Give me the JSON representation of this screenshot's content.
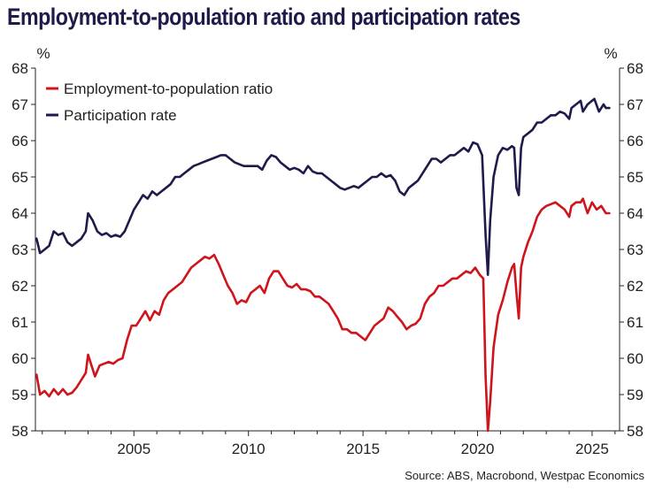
{
  "title": "Employment-to-population ratio and participation rates",
  "source": "Source: ABS, Macrobond, Westpac Economics",
  "colors": {
    "title": "#1e1b4b",
    "employment": "#d0141c",
    "participation": "#1e1b4b",
    "axis": "#222222"
  },
  "chart_data": {
    "type": "line",
    "title": "Employment-to-population ratio and participation rates",
    "xlabel": "",
    "ylabel_left": "%",
    "ylabel_right": "%",
    "xlim": [
      2000.7,
      2026.2
    ],
    "ylim": [
      58,
      68
    ],
    "yticks": [
      58,
      59,
      60,
      61,
      62,
      63,
      64,
      65,
      66,
      67,
      68
    ],
    "xticks": [
      2005,
      2010,
      2015,
      2020,
      2025
    ],
    "legend_position": "top-left",
    "grid": false,
    "series": [
      {
        "name": "Employment-to-population ratio",
        "color": "#d0141c",
        "points": [
          [
            2000.75,
            59.55
          ],
          [
            2000.9,
            59.0
          ],
          [
            2001.1,
            59.1
          ],
          [
            2001.3,
            58.95
          ],
          [
            2001.5,
            59.15
          ],
          [
            2001.7,
            59.0
          ],
          [
            2001.9,
            59.15
          ],
          [
            2002.1,
            59.0
          ],
          [
            2002.3,
            59.05
          ],
          [
            2002.5,
            59.2
          ],
          [
            2002.7,
            59.4
          ],
          [
            2002.9,
            59.6
          ],
          [
            2003.0,
            60.1
          ],
          [
            2003.15,
            59.8
          ],
          [
            2003.3,
            59.5
          ],
          [
            2003.5,
            59.8
          ],
          [
            2003.7,
            59.85
          ],
          [
            2003.9,
            59.9
          ],
          [
            2004.1,
            59.85
          ],
          [
            2004.3,
            59.95
          ],
          [
            2004.5,
            60.0
          ],
          [
            2004.7,
            60.5
          ],
          [
            2004.9,
            60.9
          ],
          [
            2005.1,
            60.9
          ],
          [
            2005.3,
            61.1
          ],
          [
            2005.5,
            61.3
          ],
          [
            2005.7,
            61.05
          ],
          [
            2005.9,
            61.3
          ],
          [
            2006.1,
            61.2
          ],
          [
            2006.3,
            61.6
          ],
          [
            2006.5,
            61.8
          ],
          [
            2006.7,
            61.9
          ],
          [
            2006.9,
            62.0
          ],
          [
            2007.1,
            62.1
          ],
          [
            2007.3,
            62.3
          ],
          [
            2007.5,
            62.5
          ],
          [
            2007.7,
            62.6
          ],
          [
            2007.9,
            62.7
          ],
          [
            2008.1,
            62.8
          ],
          [
            2008.3,
            62.75
          ],
          [
            2008.5,
            62.85
          ],
          [
            2008.7,
            62.6
          ],
          [
            2008.9,
            62.3
          ],
          [
            2009.1,
            62.0
          ],
          [
            2009.3,
            61.8
          ],
          [
            2009.5,
            61.5
          ],
          [
            2009.7,
            61.6
          ],
          [
            2009.9,
            61.55
          ],
          [
            2010.1,
            61.8
          ],
          [
            2010.3,
            61.9
          ],
          [
            2010.5,
            62.0
          ],
          [
            2010.7,
            61.8
          ],
          [
            2010.9,
            62.2
          ],
          [
            2011.1,
            62.4
          ],
          [
            2011.3,
            62.4
          ],
          [
            2011.5,
            62.2
          ],
          [
            2011.7,
            62.0
          ],
          [
            2011.9,
            61.95
          ],
          [
            2012.1,
            62.05
          ],
          [
            2012.3,
            61.9
          ],
          [
            2012.5,
            61.9
          ],
          [
            2012.7,
            61.85
          ],
          [
            2012.9,
            61.7
          ],
          [
            2013.1,
            61.7
          ],
          [
            2013.3,
            61.6
          ],
          [
            2013.5,
            61.5
          ],
          [
            2013.7,
            61.3
          ],
          [
            2013.9,
            61.1
          ],
          [
            2014.1,
            60.8
          ],
          [
            2014.3,
            60.8
          ],
          [
            2014.5,
            60.7
          ],
          [
            2014.7,
            60.7
          ],
          [
            2014.9,
            60.6
          ],
          [
            2015.1,
            60.5
          ],
          [
            2015.3,
            60.7
          ],
          [
            2015.5,
            60.9
          ],
          [
            2015.7,
            61.0
          ],
          [
            2015.9,
            61.1
          ],
          [
            2016.1,
            61.4
          ],
          [
            2016.3,
            61.3
          ],
          [
            2016.5,
            61.15
          ],
          [
            2016.7,
            61.0
          ],
          [
            2016.9,
            60.8
          ],
          [
            2017.1,
            60.9
          ],
          [
            2017.3,
            60.95
          ],
          [
            2017.5,
            61.1
          ],
          [
            2017.7,
            61.5
          ],
          [
            2017.9,
            61.7
          ],
          [
            2018.1,
            61.8
          ],
          [
            2018.3,
            62.0
          ],
          [
            2018.5,
            62.0
          ],
          [
            2018.7,
            62.1
          ],
          [
            2018.9,
            62.2
          ],
          [
            2019.1,
            62.2
          ],
          [
            2019.3,
            62.3
          ],
          [
            2019.5,
            62.4
          ],
          [
            2019.7,
            62.35
          ],
          [
            2019.9,
            62.5
          ],
          [
            2020.1,
            62.3
          ],
          [
            2020.25,
            62.2
          ],
          [
            2020.35,
            59.5
          ],
          [
            2020.45,
            58.0
          ],
          [
            2020.55,
            58.8
          ],
          [
            2020.7,
            60.3
          ],
          [
            2020.9,
            61.2
          ],
          [
            2021.1,
            61.6
          ],
          [
            2021.3,
            62.1
          ],
          [
            2021.5,
            62.5
          ],
          [
            2021.6,
            62.6
          ],
          [
            2021.7,
            61.8
          ],
          [
            2021.8,
            61.1
          ],
          [
            2021.9,
            62.5
          ],
          [
            2022.0,
            62.8
          ],
          [
            2022.2,
            63.2
          ],
          [
            2022.4,
            63.5
          ],
          [
            2022.6,
            63.9
          ],
          [
            2022.8,
            64.1
          ],
          [
            2023.0,
            64.2
          ],
          [
            2023.2,
            64.25
          ],
          [
            2023.4,
            64.3
          ],
          [
            2023.6,
            64.2
          ],
          [
            2023.8,
            64.1
          ],
          [
            2024.0,
            63.9
          ],
          [
            2024.1,
            64.2
          ],
          [
            2024.3,
            64.3
          ],
          [
            2024.5,
            64.3
          ],
          [
            2024.6,
            64.4
          ],
          [
            2024.8,
            64.0
          ],
          [
            2025.0,
            64.3
          ],
          [
            2025.2,
            64.1
          ],
          [
            2025.4,
            64.2
          ],
          [
            2025.6,
            64.0
          ],
          [
            2025.75,
            64.0
          ]
        ]
      },
      {
        "name": "Participation rate",
        "color": "#1e1b4b",
        "points": [
          [
            2000.75,
            63.3
          ],
          [
            2000.9,
            62.9
          ],
          [
            2001.1,
            63.0
          ],
          [
            2001.3,
            63.1
          ],
          [
            2001.5,
            63.5
          ],
          [
            2001.7,
            63.4
          ],
          [
            2001.9,
            63.45
          ],
          [
            2002.1,
            63.2
          ],
          [
            2002.3,
            63.1
          ],
          [
            2002.5,
            63.2
          ],
          [
            2002.7,
            63.3
          ],
          [
            2002.9,
            63.5
          ],
          [
            2003.0,
            64.0
          ],
          [
            2003.2,
            63.8
          ],
          [
            2003.4,
            63.5
          ],
          [
            2003.6,
            63.4
          ],
          [
            2003.8,
            63.45
          ],
          [
            2004.0,
            63.35
          ],
          [
            2004.2,
            63.4
          ],
          [
            2004.4,
            63.35
          ],
          [
            2004.6,
            63.5
          ],
          [
            2004.8,
            63.8
          ],
          [
            2005.0,
            64.1
          ],
          [
            2005.2,
            64.3
          ],
          [
            2005.4,
            64.5
          ],
          [
            2005.6,
            64.4
          ],
          [
            2005.8,
            64.6
          ],
          [
            2006.0,
            64.5
          ],
          [
            2006.2,
            64.6
          ],
          [
            2006.4,
            64.7
          ],
          [
            2006.6,
            64.8
          ],
          [
            2006.8,
            65.0
          ],
          [
            2007.0,
            65.0
          ],
          [
            2007.2,
            65.1
          ],
          [
            2007.4,
            65.2
          ],
          [
            2007.6,
            65.3
          ],
          [
            2007.8,
            65.35
          ],
          [
            2008.0,
            65.4
          ],
          [
            2008.2,
            65.45
          ],
          [
            2008.4,
            65.5
          ],
          [
            2008.6,
            65.55
          ],
          [
            2008.8,
            65.6
          ],
          [
            2009.0,
            65.6
          ],
          [
            2009.2,
            65.5
          ],
          [
            2009.4,
            65.4
          ],
          [
            2009.6,
            65.35
          ],
          [
            2009.8,
            65.3
          ],
          [
            2010.0,
            65.3
          ],
          [
            2010.2,
            65.3
          ],
          [
            2010.4,
            65.3
          ],
          [
            2010.6,
            65.2
          ],
          [
            2010.8,
            65.45
          ],
          [
            2011.0,
            65.6
          ],
          [
            2011.2,
            65.55
          ],
          [
            2011.4,
            65.4
          ],
          [
            2011.6,
            65.3
          ],
          [
            2011.8,
            65.2
          ],
          [
            2012.0,
            65.25
          ],
          [
            2012.2,
            65.2
          ],
          [
            2012.4,
            65.1
          ],
          [
            2012.6,
            65.3
          ],
          [
            2012.8,
            65.15
          ],
          [
            2013.0,
            65.1
          ],
          [
            2013.2,
            65.1
          ],
          [
            2013.4,
            65.0
          ],
          [
            2013.6,
            64.9
          ],
          [
            2013.8,
            64.8
          ],
          [
            2014.0,
            64.7
          ],
          [
            2014.2,
            64.65
          ],
          [
            2014.4,
            64.7
          ],
          [
            2014.6,
            64.75
          ],
          [
            2014.8,
            64.7
          ],
          [
            2015.0,
            64.8
          ],
          [
            2015.2,
            64.9
          ],
          [
            2015.4,
            65.0
          ],
          [
            2015.6,
            65.0
          ],
          [
            2015.8,
            65.1
          ],
          [
            2016.0,
            65.0
          ],
          [
            2016.2,
            65.05
          ],
          [
            2016.4,
            64.9
          ],
          [
            2016.6,
            64.6
          ],
          [
            2016.8,
            64.5
          ],
          [
            2017.0,
            64.7
          ],
          [
            2017.2,
            64.8
          ],
          [
            2017.4,
            64.9
          ],
          [
            2017.6,
            65.1
          ],
          [
            2017.8,
            65.3
          ],
          [
            2018.0,
            65.5
          ],
          [
            2018.2,
            65.5
          ],
          [
            2018.4,
            65.4
          ],
          [
            2018.6,
            65.5
          ],
          [
            2018.8,
            65.6
          ],
          [
            2019.0,
            65.6
          ],
          [
            2019.2,
            65.7
          ],
          [
            2019.4,
            65.8
          ],
          [
            2019.6,
            65.7
          ],
          [
            2019.8,
            65.95
          ],
          [
            2020.0,
            65.9
          ],
          [
            2020.2,
            65.6
          ],
          [
            2020.35,
            63.4
          ],
          [
            2020.45,
            62.3
          ],
          [
            2020.55,
            63.8
          ],
          [
            2020.7,
            65.0
          ],
          [
            2020.9,
            65.6
          ],
          [
            2021.1,
            65.8
          ],
          [
            2021.3,
            65.75
          ],
          [
            2021.5,
            65.85
          ],
          [
            2021.6,
            65.8
          ],
          [
            2021.7,
            64.7
          ],
          [
            2021.8,
            64.5
          ],
          [
            2021.9,
            65.8
          ],
          [
            2022.0,
            66.1
          ],
          [
            2022.2,
            66.2
          ],
          [
            2022.4,
            66.3
          ],
          [
            2022.6,
            66.5
          ],
          [
            2022.8,
            66.5
          ],
          [
            2023.0,
            66.6
          ],
          [
            2023.2,
            66.7
          ],
          [
            2023.4,
            66.7
          ],
          [
            2023.6,
            66.8
          ],
          [
            2023.8,
            66.75
          ],
          [
            2024.0,
            66.6
          ],
          [
            2024.1,
            66.9
          ],
          [
            2024.3,
            67.0
          ],
          [
            2024.5,
            67.1
          ],
          [
            2024.6,
            66.8
          ],
          [
            2024.8,
            67.0
          ],
          [
            2025.0,
            67.1
          ],
          [
            2025.1,
            67.15
          ],
          [
            2025.3,
            66.8
          ],
          [
            2025.5,
            67.0
          ],
          [
            2025.6,
            66.9
          ],
          [
            2025.75,
            66.9
          ]
        ]
      }
    ]
  }
}
